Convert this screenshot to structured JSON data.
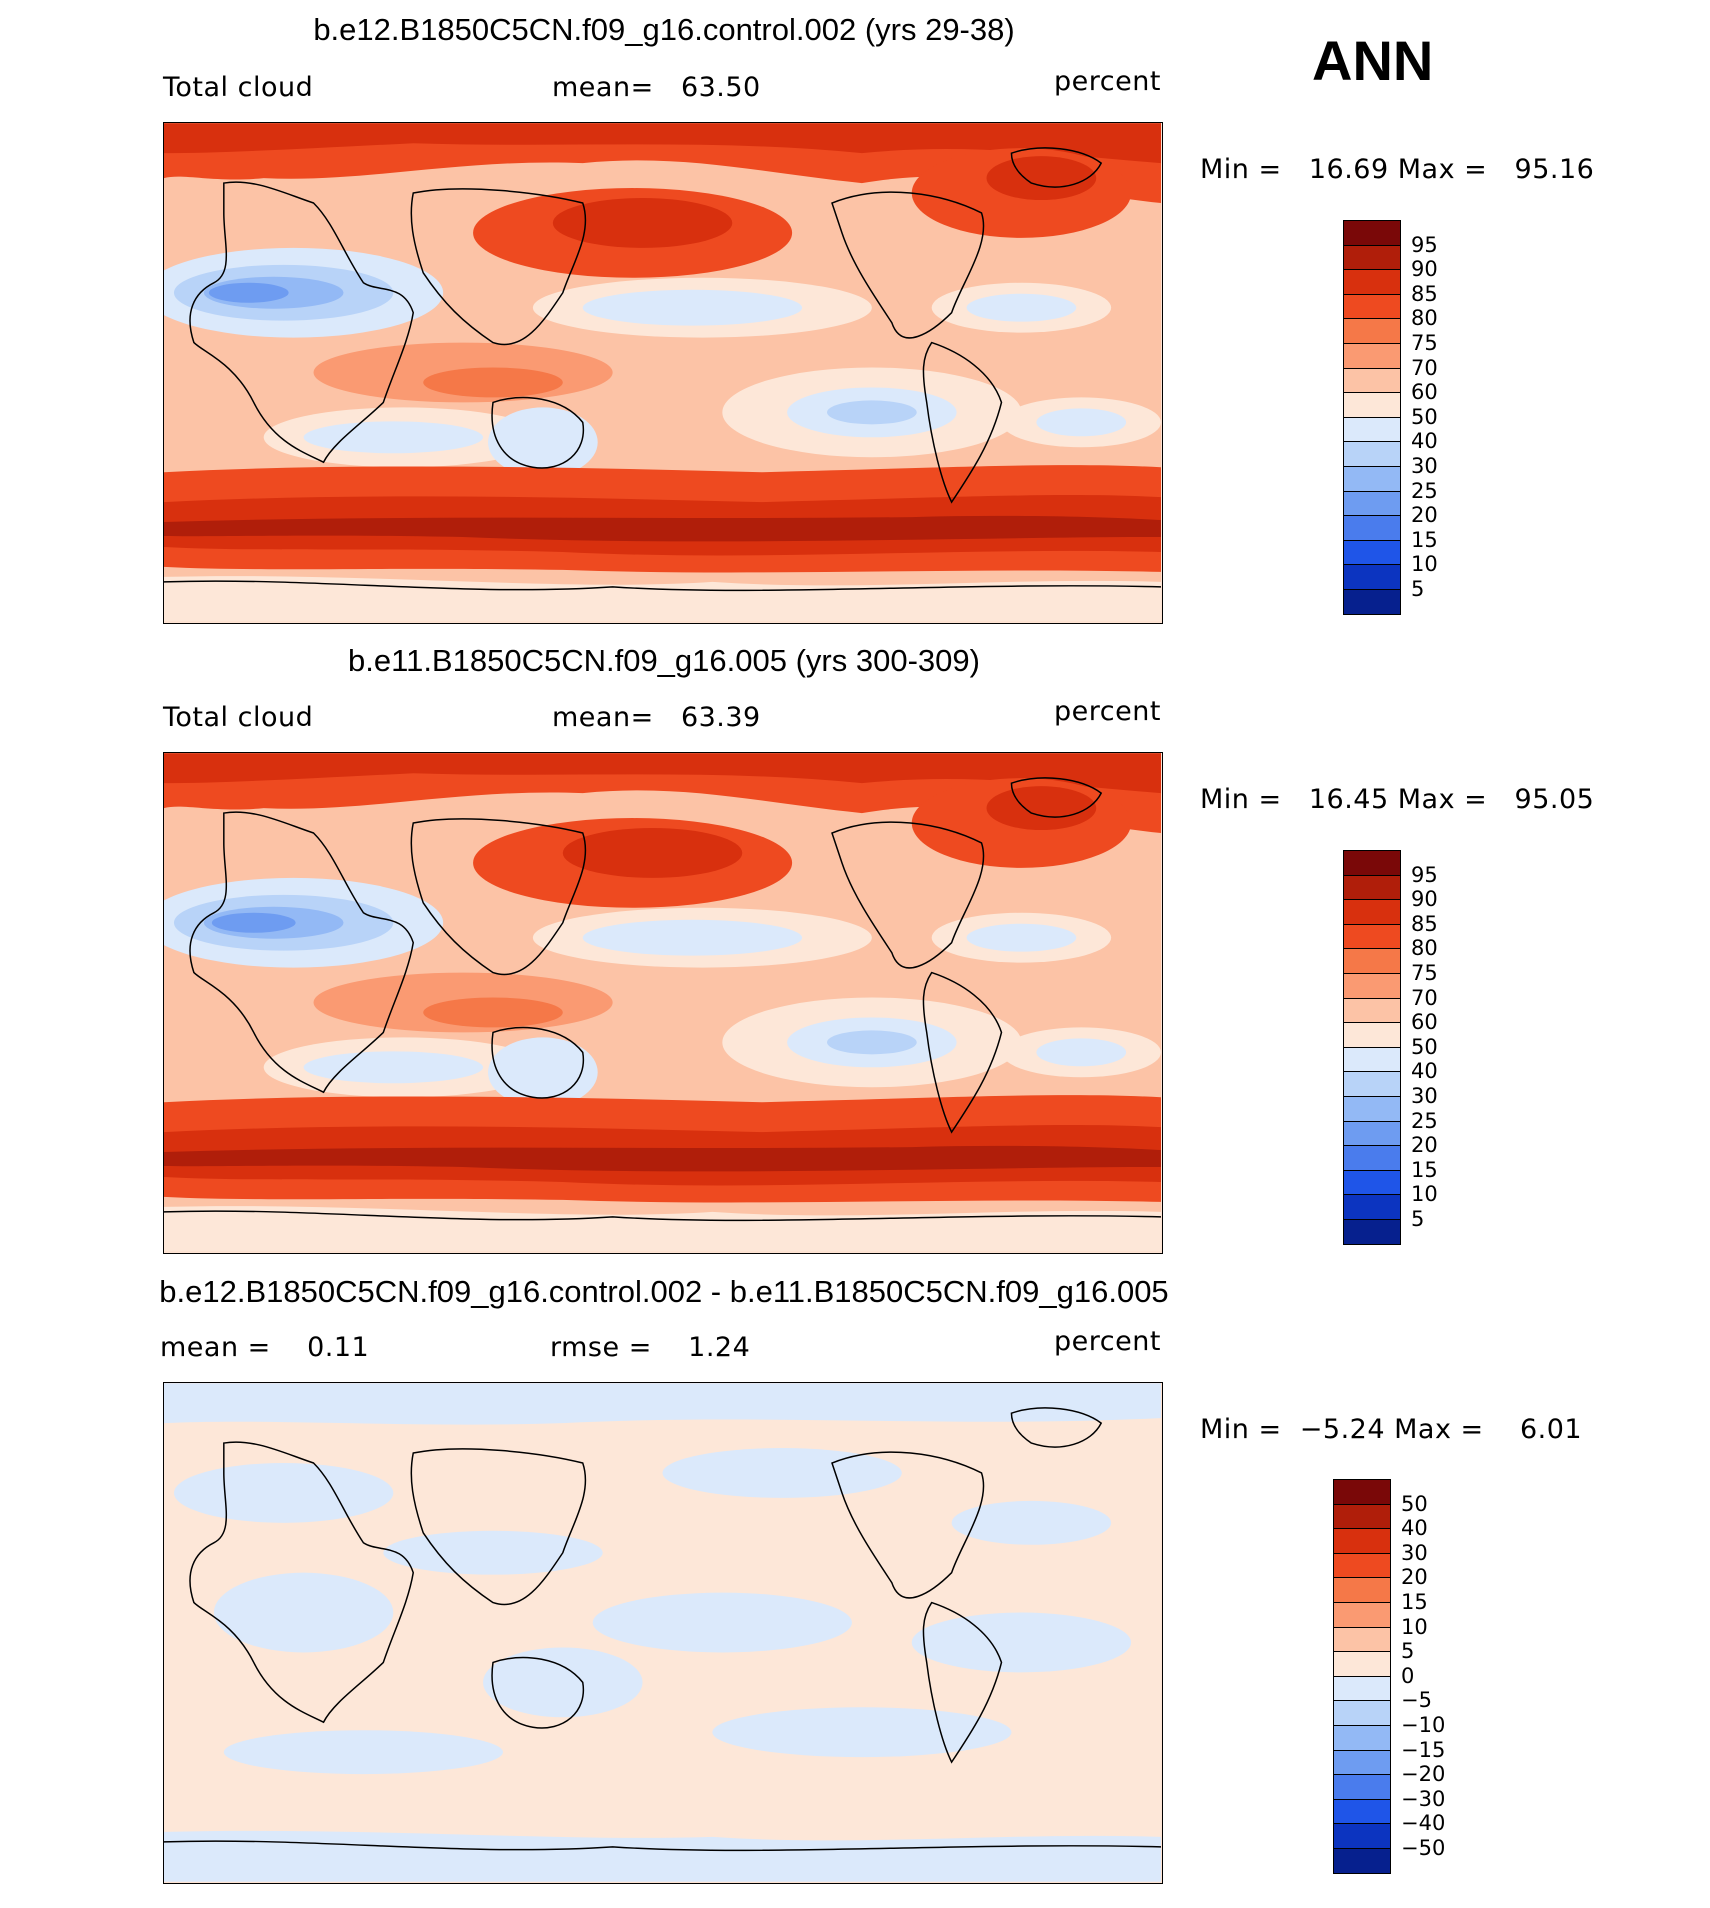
{
  "season": "ANN",
  "panels": [
    {
      "title": "b.e12.B1850C5CN.f09_g16.control.002 (yrs 29-38)",
      "left_label": "Total cloud",
      "center_label": "mean=   63.50",
      "units": "percent",
      "minmax": "Min =   16.69 Max =   95.16",
      "kind": "field"
    },
    {
      "title": "b.e11.B1850C5CN.f09_g16.005 (yrs 300-309)",
      "left_label": "Total cloud",
      "center_label": "mean=   63.39",
      "units": "percent",
      "minmax": "Min =   16.45 Max =   95.05",
      "kind": "field"
    },
    {
      "title": "b.e12.B1850C5CN.f09_g16.control.002 - b.e11.B1850C5CN.f09_g16.005",
      "left_label": "mean =    0.11",
      "center_label": "rmse =    1.24",
      "units": "percent",
      "minmax": "Min =  −5.24 Max =    6.01",
      "kind": "diff"
    }
  ],
  "colorbars": {
    "field": {
      "ticks": [
        "95",
        "90",
        "85",
        "80",
        "75",
        "70",
        "60",
        "50",
        "40",
        "30",
        "25",
        "20",
        "15",
        "10",
        "5"
      ],
      "colors": [
        "#7a0808",
        "#b01e0a",
        "#d8300e",
        "#ee4a20",
        "#f57848",
        "#fa9a72",
        "#fcc3a6",
        "#fde7d8",
        "#dbe9fb",
        "#b8d3f8",
        "#93b9f5",
        "#6e9cf1",
        "#4a7ced",
        "#1f55e8",
        "#0c34c0",
        "#06208e"
      ]
    },
    "diff": {
      "ticks": [
        "50",
        "40",
        "30",
        "20",
        "15",
        "10",
        "5",
        "0",
        "−5",
        "−10",
        "−15",
        "−20",
        "−30",
        "−40",
        "−50"
      ],
      "colors": [
        "#7a0808",
        "#b01e0a",
        "#d8300e",
        "#ee4a20",
        "#f57848",
        "#fa9a72",
        "#fcc3a6",
        "#fde7d8",
        "#dbe9fb",
        "#b8d3f8",
        "#93b9f5",
        "#6e9cf1",
        "#4a7ced",
        "#1f55e8",
        "#0c34c0",
        "#06208e"
      ]
    }
  },
  "chart_data": [
    {
      "type": "heatmap",
      "title": "b.e12.B1850C5CN.f09_g16.control.002 (yrs 29-38)",
      "variable": "Total cloud",
      "units": "percent",
      "mean": 63.5,
      "min": 16.69,
      "max": 95.16,
      "levels": [
        5,
        10,
        15,
        20,
        25,
        30,
        40,
        50,
        60,
        70,
        75,
        80,
        85,
        90,
        95
      ]
    },
    {
      "type": "heatmap",
      "title": "b.e11.B1850C5CN.f09_g16.005 (yrs 300-309)",
      "variable": "Total cloud",
      "units": "percent",
      "mean": 63.39,
      "min": 16.45,
      "max": 95.05,
      "levels": [
        5,
        10,
        15,
        20,
        25,
        30,
        40,
        50,
        60,
        70,
        75,
        80,
        85,
        90,
        95
      ]
    },
    {
      "type": "heatmap",
      "title": "b.e12.B1850C5CN.f09_g16.control.002 - b.e11.B1850C5CN.f09_g16.005",
      "units": "percent",
      "mean": 0.11,
      "rmse": 1.24,
      "min": -5.24,
      "max": 6.01,
      "levels": [
        -50,
        -40,
        -30,
        -20,
        -15,
        -10,
        -5,
        0,
        5,
        10,
        15,
        20,
        30,
        40,
        50
      ]
    }
  ]
}
